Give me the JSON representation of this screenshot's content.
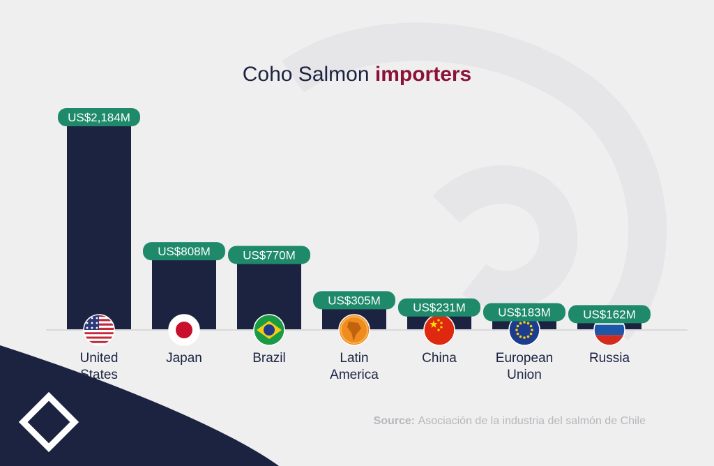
{
  "chart_data": {
    "type": "bar",
    "title": "Coho Salmon importers",
    "title_parts": {
      "regular": "Coho Salmon",
      "highlight": "importers"
    },
    "categories": [
      "United States",
      "Japan",
      "Brazil",
      "Latin America",
      "China",
      "European Union",
      "Russia"
    ],
    "category_lines": [
      [
        "United",
        "States"
      ],
      [
        "Japan"
      ],
      [
        "Brazil"
      ],
      [
        "Latin",
        "America"
      ],
      [
        "China"
      ],
      [
        "European",
        "Union"
      ],
      [
        "Russia"
      ]
    ],
    "values": [
      2184,
      808,
      770,
      305,
      231,
      183,
      162
    ],
    "data_labels": [
      "US$2,184M",
      "US$808M",
      "US$770M",
      "US$305M",
      "US$231M",
      "US$183M",
      "US$162M"
    ],
    "flag_icons": [
      "us-flag-icon",
      "japan-flag-icon",
      "brazil-flag-icon",
      "latin-america-icon",
      "china-flag-icon",
      "eu-flag-icon",
      "russia-flag-icon"
    ],
    "unit": "US$ millions",
    "ylim": [
      0,
      2184
    ],
    "grid": false,
    "legend": "none",
    "colors": {
      "bar": "#1b2340",
      "label": "#1e8a6a",
      "highlight": "#8b1337",
      "background": "#efeff0"
    }
  },
  "source": {
    "prefix": "Source:",
    "text": "Asociación de la industria del salmón de Chile"
  },
  "brand": {
    "icon": "brand-logo-icon"
  }
}
